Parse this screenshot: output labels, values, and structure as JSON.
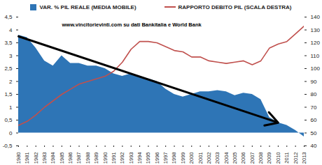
{
  "chart_data": {
    "type": "combo",
    "annotations": [
      "www.vincitorievinti.com su dati Bankitalia e World Bank"
    ],
    "x": [
      1980,
      1981,
      1982,
      1983,
      1984,
      1985,
      1986,
      1987,
      1988,
      1989,
      1990,
      1991,
      1992,
      1993,
      1994,
      1995,
      1996,
      1997,
      1998,
      1999,
      2000,
      2001,
      2002,
      2003,
      2004,
      2005,
      2006,
      2007,
      2008,
      2009,
      2010,
      2011,
      2012,
      2013
    ],
    "xlim": [
      1980,
      2013
    ],
    "xticks": [
      1980,
      1981,
      1982,
      1983,
      1984,
      1985,
      1986,
      1987,
      1988,
      1989,
      1990,
      1991,
      1992,
      1993,
      1994,
      1995,
      1996,
      1997,
      1998,
      1999,
      2000,
      2001,
      2002,
      2003,
      2004,
      2005,
      2006,
      2007,
      2008,
      2009,
      2010,
      2011,
      2012,
      2013
    ],
    "ylim": [
      -0.5,
      4.5
    ],
    "yticks": [
      {
        "value": -0.5,
        "label": "-0,5"
      },
      0,
      {
        "value": 0.5,
        "label": "0,5"
      },
      1,
      {
        "value": 1.5,
        "label": "1,5"
      },
      2,
      {
        "value": 2.5,
        "label": "2,5"
      },
      3,
      {
        "value": 3.5,
        "label": "3,5"
      },
      4,
      {
        "value": 4.5,
        "label": "4,5"
      }
    ],
    "y2lim": [
      40,
      140
    ],
    "y2ticks": [
      40,
      50,
      60,
      70,
      80,
      90,
      100,
      110,
      120,
      130,
      140
    ],
    "legend": "top",
    "series": [
      {
        "name": "VAR. % PIL REALE (MEDIA MOBILE)",
        "type": "area",
        "color": "#2e75b6",
        "values": [
          3.8,
          3.7,
          3.3,
          2.8,
          2.6,
          3.0,
          2.7,
          2.7,
          2.6,
          2.6,
          2.5,
          2.3,
          2.2,
          2.3,
          2.2,
          2.1,
          2.0,
          1.7,
          1.5,
          1.4,
          1.5,
          1.6,
          1.6,
          1.65,
          1.6,
          1.45,
          1.55,
          1.5,
          1.3,
          0.6,
          0.4,
          0.3,
          0.1,
          -0.15
        ]
      },
      {
        "name": "RAPPORTO DEBITO PIL (SCALA DESTRA)",
        "type": "line",
        "color": "#c0504d",
        "axis": "y2",
        "values": [
          56,
          59,
          64,
          70,
          75,
          80,
          84,
          88,
          90,
          92,
          94,
          98,
          105,
          115,
          121,
          121,
          120,
          117,
          114,
          113,
          109,
          109,
          106,
          105,
          104,
          105,
          106,
          103,
          106,
          116,
          119,
          121,
          127,
          133
        ]
      }
    ],
    "arrow": {
      "x1": 1980,
      "y1": 3.75,
      "x2": 2010,
      "y2": 0.4
    }
  }
}
